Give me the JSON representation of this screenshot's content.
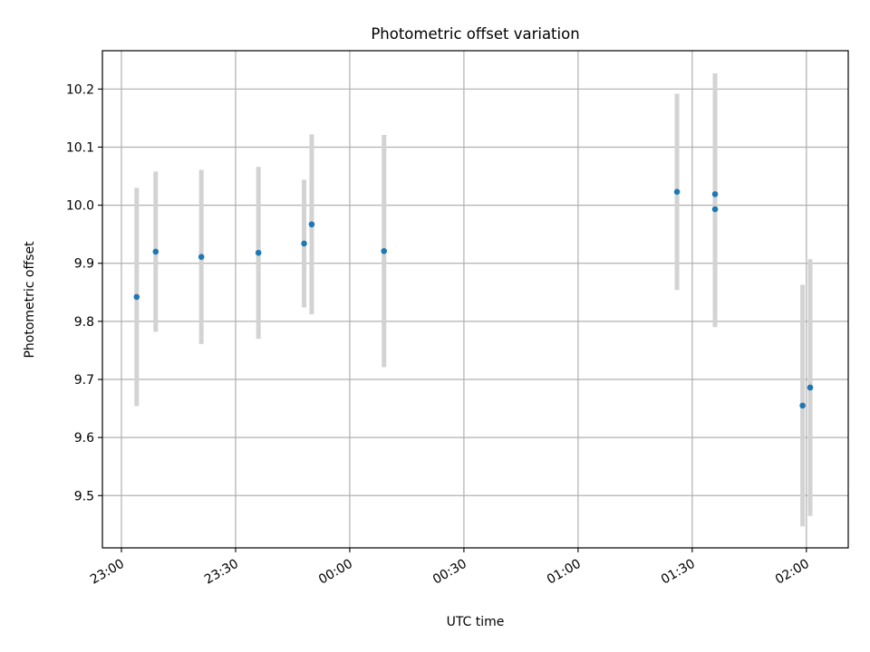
{
  "chart_data": {
    "type": "scatter",
    "title": "Photometric offset variation",
    "xlabel": "UTC time",
    "ylabel": "Photometric offset",
    "x_ticks": [
      {
        "t": "23:00",
        "label": "23:00"
      },
      {
        "t": "23:30",
        "label": "23:30"
      },
      {
        "t": "00:00",
        "label": "00:00"
      },
      {
        "t": "00:30",
        "label": "00:30"
      },
      {
        "t": "01:00",
        "label": "01:00"
      },
      {
        "t": "01:30",
        "label": "01:30"
      },
      {
        "t": "02:00",
        "label": "02:00"
      }
    ],
    "y_ticks": [
      9.5,
      9.6,
      9.7,
      9.8,
      9.9,
      10.0,
      10.1,
      10.2
    ],
    "y_tick_labels": [
      "9.5",
      "9.6",
      "9.7",
      "9.8",
      "9.9",
      "10.0",
      "10.1",
      "10.2"
    ],
    "xlim": [
      "22:55",
      "02:11"
    ],
    "ylim": [
      9.41,
      10.266
    ],
    "grid": true,
    "x_tick_rotation": "30deg",
    "colors": {
      "point": "#1f77b4",
      "errorbar": "#d3d3d3",
      "grid": "#b0b0b0"
    },
    "points": [
      {
        "t": "23:04",
        "y": 9.842,
        "yerr": 0.188
      },
      {
        "t": "23:09",
        "y": 9.92,
        "yerr": 0.138
      },
      {
        "t": "23:21",
        "y": 9.911,
        "yerr": 0.15
      },
      {
        "t": "23:36",
        "y": 9.918,
        "yerr": 0.148
      },
      {
        "t": "23:48",
        "y": 9.934,
        "yerr": 0.11
      },
      {
        "t": "23:50",
        "y": 9.967,
        "yerr": 0.155
      },
      {
        "t": "00:09",
        "y": 9.921,
        "yerr": 0.2
      },
      {
        "t": "01:26",
        "y": 10.023,
        "yerr": 0.169
      },
      {
        "t": "01:36",
        "y": 10.019,
        "yerr": 0.208
      },
      {
        "t": "01:36",
        "y": 9.993,
        "yerr": 0.203
      },
      {
        "t": "01:59",
        "y": 9.655,
        "yerr": 0.208
      },
      {
        "t": "02:01",
        "y": 9.686,
        "yerr": 0.221
      }
    ]
  }
}
